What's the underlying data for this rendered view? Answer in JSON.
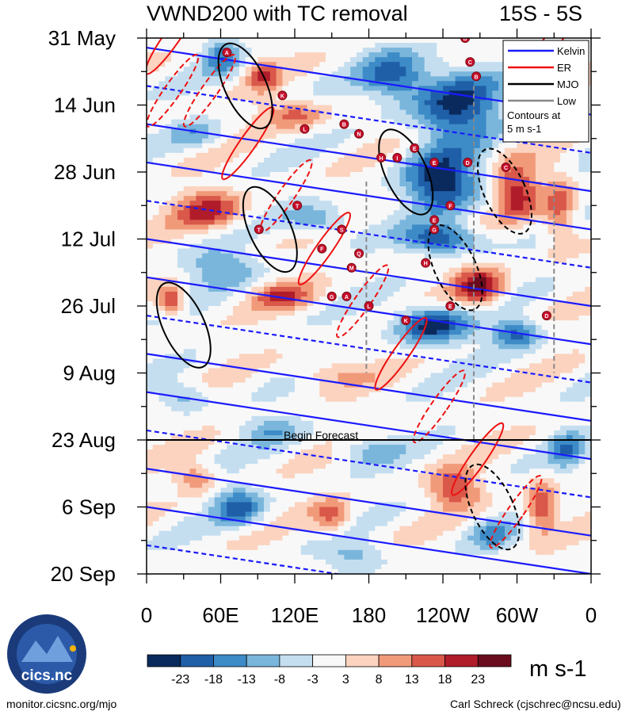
{
  "chart_data": {
    "type": "heatmap",
    "title": "VWND200 with TC removal",
    "region": "15S - 5S",
    "xlabel": "",
    "ylabel": "",
    "x_ticks": [
      "0",
      "60E",
      "120E",
      "180",
      "120W",
      "60W",
      "0"
    ],
    "xlim": [
      0,
      360
    ],
    "y_ticks": [
      "31 May",
      "14 Jun",
      "28 Jun",
      "12 Jul",
      "26 Jul",
      "9 Aug",
      "23 Aug",
      "6 Sep",
      "20 Sep"
    ],
    "ylim_days": [
      0,
      112
    ],
    "forecast_label": "Begin Forecast",
    "forecast_day": 84,
    "colorbar": {
      "unit": "m s-1",
      "tick_labels": [
        "-23",
        "-18",
        "-13",
        "-8",
        "-3",
        "3",
        "8",
        "13",
        "18",
        "23"
      ],
      "colors": [
        "#0a2a5e",
        "#1f5fa8",
        "#3d8bc7",
        "#7ab6dc",
        "#c4def0",
        "#f8f8f8",
        "#fbd3bf",
        "#f19a7a",
        "#d9584a",
        "#b11c2a",
        "#6a0c1d"
      ]
    },
    "legend": {
      "placement": "top-right",
      "entries": [
        {
          "label": "Kelvin",
          "color": "#1a1aff"
        },
        {
          "label": "ER",
          "color": "#ee1111"
        },
        {
          "label": "MJO",
          "color": "#000000"
        },
        {
          "label": "Low",
          "color": "#888888"
        }
      ],
      "note_line1": "Contours at",
      "note_line2": "5 m s-1"
    },
    "storm_markers": [
      {
        "id": "A",
        "lon": 65,
        "day": 3
      },
      {
        "id": "B",
        "lon": 258,
        "day": 0
      },
      {
        "id": "C",
        "lon": 262,
        "day": 5
      },
      {
        "id": "B",
        "lon": 267,
        "day": 8
      },
      {
        "id": "K",
        "lon": 110,
        "day": 12
      },
      {
        "id": "L",
        "lon": 128,
        "day": 19
      },
      {
        "id": "B",
        "lon": 160,
        "day": 18
      },
      {
        "id": "N",
        "lon": 172,
        "day": 20
      },
      {
        "id": "E",
        "lon": 217,
        "day": 23
      },
      {
        "id": "H",
        "lon": 190,
        "day": 25
      },
      {
        "id": "I",
        "lon": 203,
        "day": 25
      },
      {
        "id": "D",
        "lon": 260,
        "day": 26
      },
      {
        "id": "E",
        "lon": 233,
        "day": 26
      },
      {
        "id": "C",
        "lon": 291,
        "day": 27
      },
      {
        "id": "T",
        "lon": 122,
        "day": 35
      },
      {
        "id": "F",
        "lon": 246,
        "day": 35
      },
      {
        "id": "T",
        "lon": 91,
        "day": 40
      },
      {
        "id": "S",
        "lon": 158,
        "day": 40
      },
      {
        "id": "E",
        "lon": 233,
        "day": 38
      },
      {
        "id": "G",
        "lon": 233,
        "day": 40
      },
      {
        "id": "F",
        "lon": 142,
        "day": 44
      },
      {
        "id": "Q",
        "lon": 172,
        "day": 45
      },
      {
        "id": "M",
        "lon": 166,
        "day": 48
      },
      {
        "id": "H",
        "lon": 226,
        "day": 47
      },
      {
        "id": "G",
        "lon": 150,
        "day": 54
      },
      {
        "id": "A",
        "lon": 162,
        "day": 54
      },
      {
        "id": "E",
        "lon": 246,
        "day": 56
      },
      {
        "id": "D",
        "lon": 324,
        "day": 58
      },
      {
        "id": "L",
        "lon": 180,
        "day": 56
      },
      {
        "id": "K",
        "lon": 210,
        "day": 59
      }
    ]
  },
  "footer": {
    "left": "monitor.cicsnc.org/mjo",
    "right": "Carl Schreck (cjschrec@ncsu.edu)"
  },
  "logo": {
    "text": "cics.nc",
    "ring_text": "Cooperative Institute for Climate and Satellites"
  }
}
